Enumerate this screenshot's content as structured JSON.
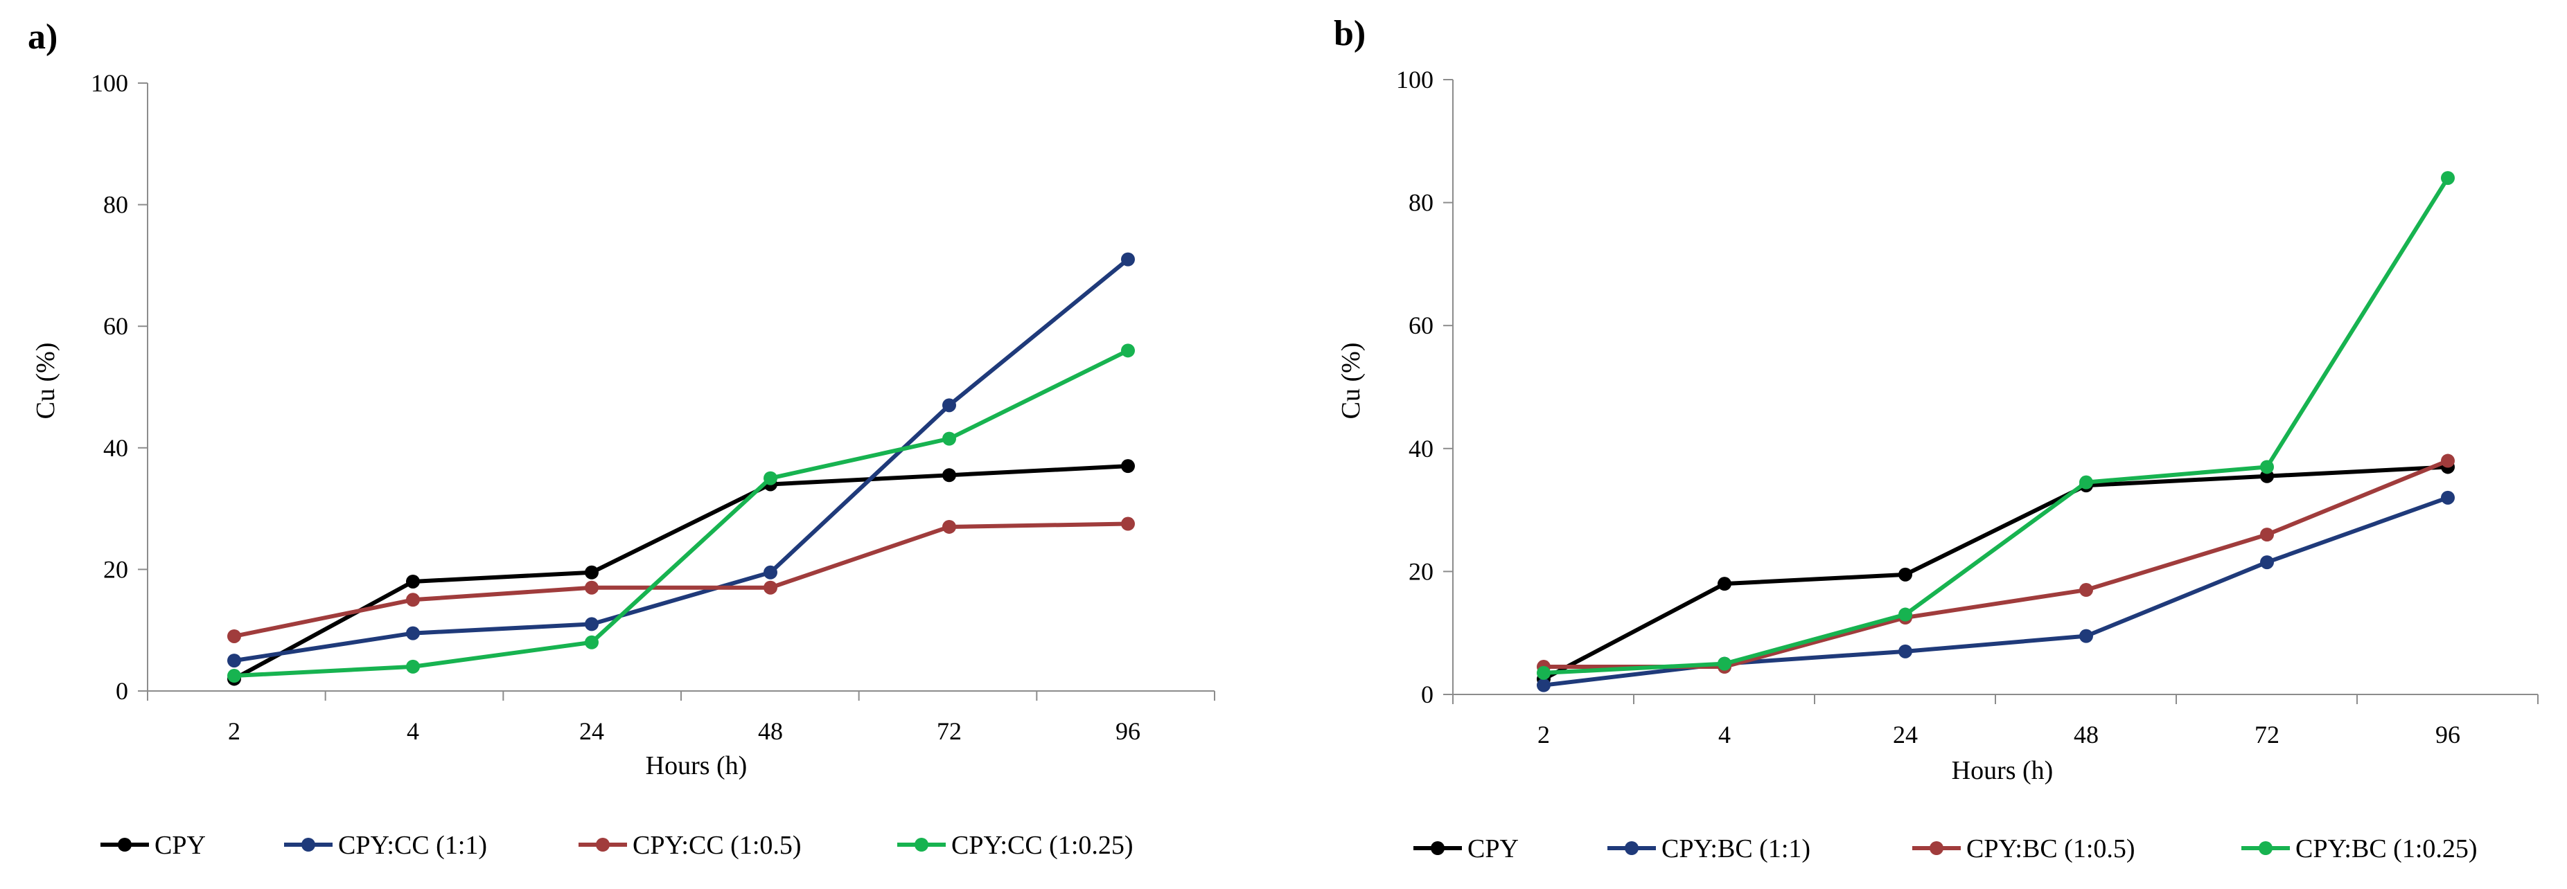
{
  "chart_data": [
    {
      "panel_label": "a)",
      "type": "line",
      "categories": [
        "2",
        "4",
        "24",
        "48",
        "72",
        "96"
      ],
      "xlabel": "Hours (h)",
      "ylabel": "Cu (%)",
      "ylim": [
        0,
        100
      ],
      "yticks": [
        "0",
        "20",
        "40",
        "60",
        "80",
        "100"
      ],
      "grid": false,
      "legend_position": "bottom",
      "series": [
        {
          "name": "CPY",
          "color": "#000000",
          "values": [
            2,
            18,
            19.5,
            34,
            35.5,
            37
          ]
        },
        {
          "name": "CPY:CC (1:1)",
          "color": "#1f3a7a",
          "values": [
            5,
            9.5,
            11,
            19.5,
            47,
            71
          ]
        },
        {
          "name": "CPY:CC (1:0.5)",
          "color": "#a03c3c",
          "values": [
            9,
            15,
            17,
            17,
            27,
            27.5
          ]
        },
        {
          "name": "CPY:CC (1:0.25)",
          "color": "#17b350",
          "values": [
            2.5,
            4,
            8,
            35,
            41.5,
            56
          ]
        }
      ]
    },
    {
      "panel_label": "b)",
      "type": "line",
      "categories": [
        "2",
        "4",
        "24",
        "48",
        "72",
        "96"
      ],
      "xlabel": "Hours (h)",
      "ylabel": "Cu (%)",
      "ylim": [
        0,
        100
      ],
      "yticks": [
        "0",
        "20",
        "40",
        "60",
        "80",
        "100"
      ],
      "grid": false,
      "legend_position": "bottom",
      "series": [
        {
          "name": "CPY",
          "color": "#000000",
          "values": [
            2.5,
            18,
            19.5,
            34,
            35.5,
            37
          ]
        },
        {
          "name": "CPY:BC (1:1)",
          "color": "#1f3a7a",
          "values": [
            1.5,
            5,
            7,
            9.5,
            21.5,
            32
          ]
        },
        {
          "name": "CPY:BC (1:0.5)",
          "color": "#a03c3c",
          "values": [
            4.5,
            4.5,
            12.5,
            17,
            26,
            38
          ]
        },
        {
          "name": "CPY:BC (1:0.25)",
          "color": "#17b350",
          "values": [
            3.5,
            5,
            13,
            34.5,
            37,
            84
          ]
        }
      ]
    }
  ]
}
